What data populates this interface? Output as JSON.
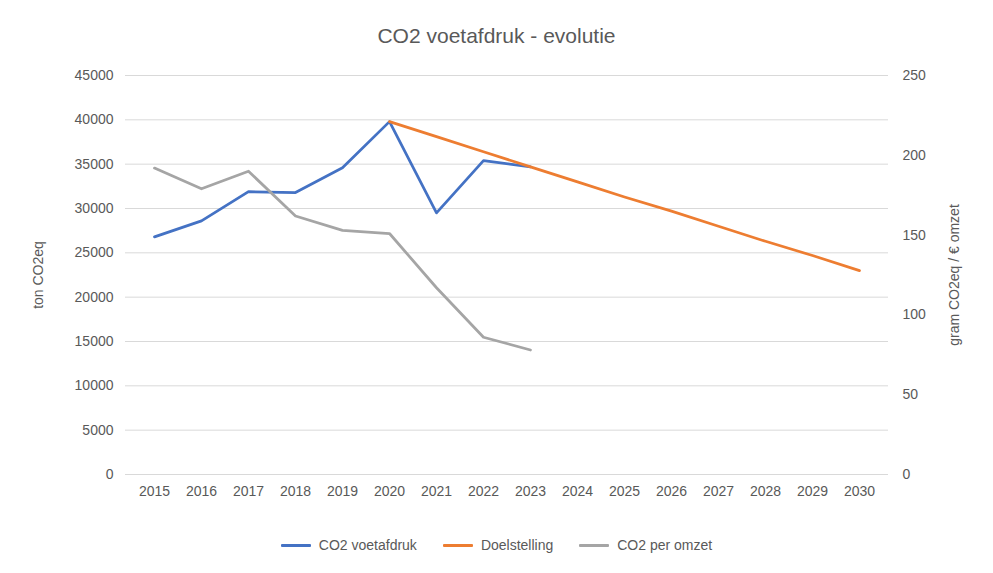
{
  "chart_data": {
    "type": "line",
    "title": "CO2 voetafdruk - evolutie",
    "ylabel": "ton CO2eq",
    "y2label": "gram CO2eq / € omzet",
    "categories": [
      "2015",
      "2016",
      "2017",
      "2018",
      "2019",
      "2020",
      "2021",
      "2022",
      "2023",
      "2024",
      "2025",
      "2026",
      "2027",
      "2028",
      "2029",
      "2030"
    ],
    "series": [
      {
        "name": "CO2 voetafdruk",
        "color": "#4472c4",
        "values": [
          26800,
          28600,
          31900,
          31800,
          34600,
          39800,
          29500,
          35400,
          34700,
          null,
          null,
          null,
          null,
          null,
          null,
          null
        ]
      },
      {
        "name": "Doelstelling",
        "color": "#ed7d31",
        "values": [
          null,
          null,
          null,
          null,
          null,
          39800,
          38100,
          36400,
          34700,
          33000,
          31300,
          29700,
          28000,
          26300,
          24700,
          23000
        ]
      },
      {
        "name": "CO2 per omzet",
        "color": "#a5a5a5",
        "axis": "y2",
        "values": [
          192,
          179,
          190,
          162,
          153,
          151,
          117,
          86,
          78,
          null,
          null,
          null,
          null,
          null,
          null,
          null
        ]
      }
    ],
    "ylim": [
      0,
      45000
    ],
    "yticks": [
      0,
      5000,
      10000,
      15000,
      20000,
      25000,
      30000,
      35000,
      40000,
      45000
    ],
    "y2lim": [
      0,
      250
    ],
    "y2ticks": [
      0,
      50,
      100,
      150,
      200,
      250
    ],
    "grid": true,
    "legend": "bottom"
  }
}
